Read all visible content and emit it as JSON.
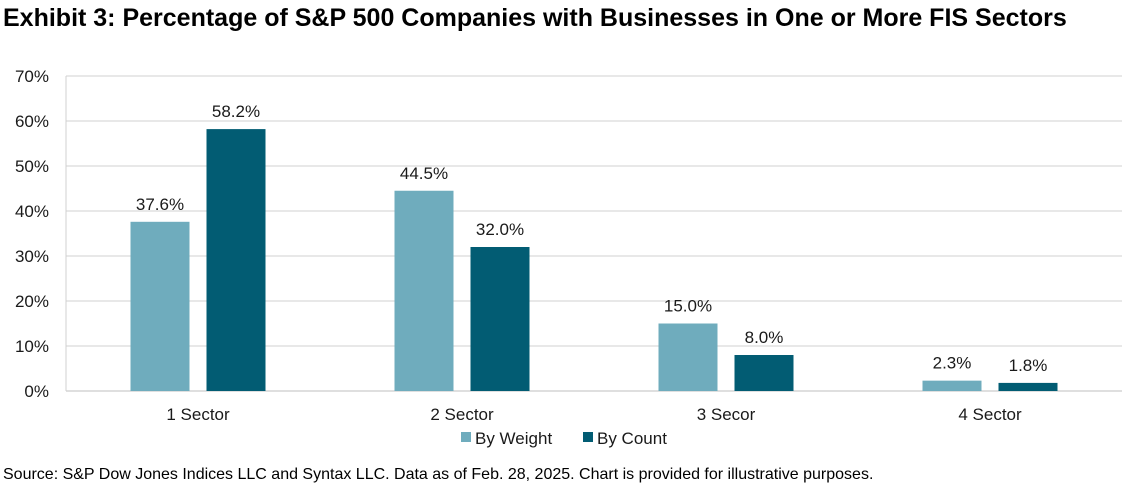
{
  "title": "Exhibit 3: Percentage of S&P 500 Companies with Businesses in One or More FIS Sectors",
  "source": "Source: S&P Dow Jones Indices LLC and Syntax LLC. Data as of Feb. 28, 2025. Chart is provided for illustrative purposes.",
  "chart_data": {
    "type": "bar",
    "title": "Exhibit 3: Percentage of S&P 500 Companies with Businesses in One or More FIS Sectors",
    "xlabel": "",
    "ylabel": "",
    "categories": [
      "1 Sector",
      "2 Sector",
      "3 Secor",
      "4 Sector"
    ],
    "series": [
      {
        "name": "By Weight",
        "color": "#6FACBD",
        "values": [
          37.6,
          44.5,
          15.0,
          2.3
        ],
        "labels": [
          "37.6%",
          "44.5%",
          "15.0%",
          "2.3%"
        ]
      },
      {
        "name": "By Count",
        "color": "#025C73",
        "values": [
          58.2,
          32.0,
          8.0,
          1.8
        ],
        "labels": [
          "58.2%",
          "32.0%",
          "8.0%",
          "1.8%"
        ]
      }
    ],
    "ylim": [
      0,
      70
    ],
    "yticks": [
      0,
      10,
      20,
      30,
      40,
      50,
      60,
      70
    ],
    "ytick_labels": [
      "0%",
      "10%",
      "20%",
      "30%",
      "40%",
      "50%",
      "60%",
      "70%"
    ],
    "grid": true,
    "legend_position": "bottom-center"
  }
}
